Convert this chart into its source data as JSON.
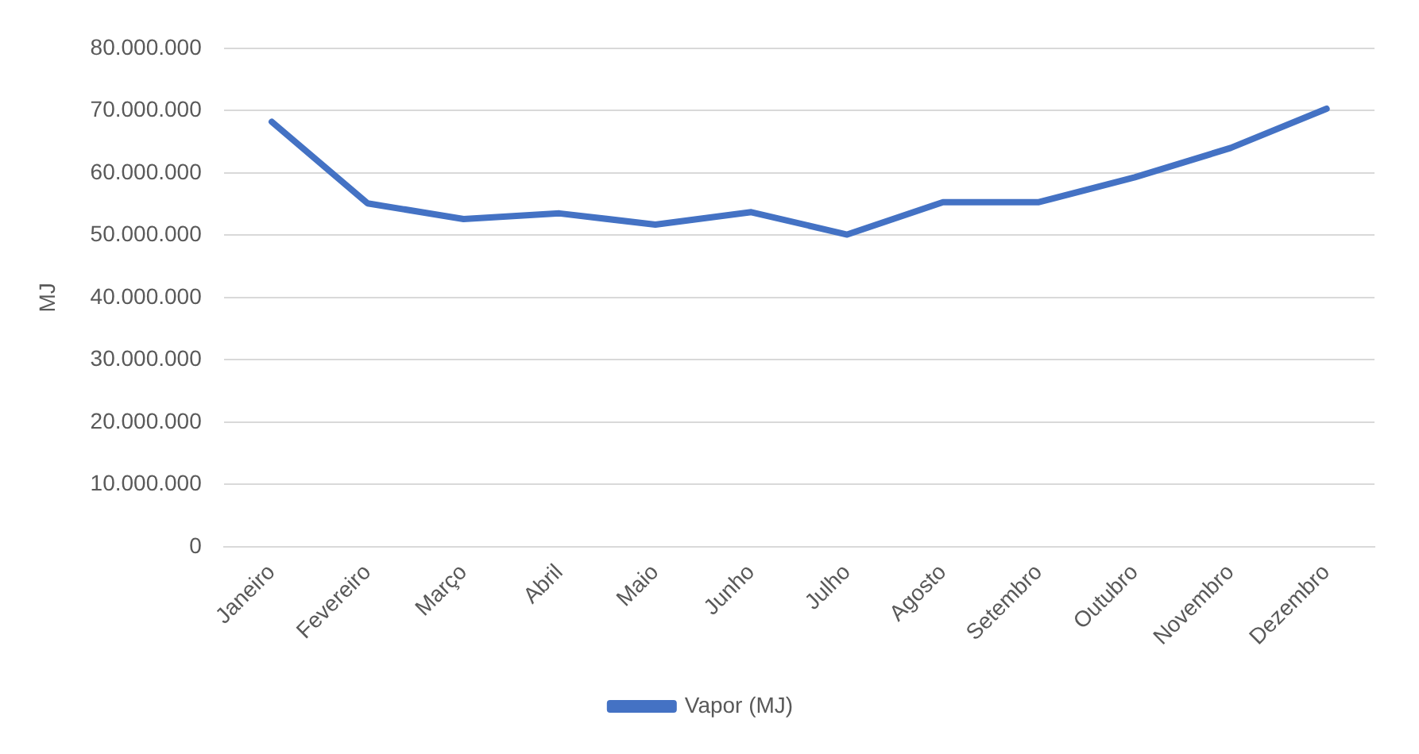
{
  "chart_data": {
    "type": "line",
    "ylabel": "MJ",
    "categories": [
      "Janeiro",
      "Fevereiro",
      "Março",
      "Abril",
      "Maio",
      "Junho",
      "Julho",
      "Agosto",
      "Setembro",
      "Outubro",
      "Novembro",
      "Dezembro"
    ],
    "series": [
      {
        "name": "Vapor (MJ)",
        "color": "#4472c4",
        "values": [
          68200000,
          55100000,
          52600000,
          53500000,
          51700000,
          53700000,
          50100000,
          55300000,
          55300000,
          59300000,
          64000000,
          70300000
        ]
      }
    ],
    "ylim": [
      0,
      80000000
    ],
    "yticks": [
      {
        "value": 0,
        "label": "0"
      },
      {
        "value": 10000000,
        "label": "10.000.000"
      },
      {
        "value": 20000000,
        "label": "20.000.000"
      },
      {
        "value": 30000000,
        "label": "30.000.000"
      },
      {
        "value": 40000000,
        "label": "40.000.000"
      },
      {
        "value": 50000000,
        "label": "50.000.000"
      },
      {
        "value": 60000000,
        "label": "60.000.000"
      },
      {
        "value": 70000000,
        "label": "70.000.000"
      },
      {
        "value": 80000000,
        "label": "80.000.000"
      }
    ],
    "grid": "y",
    "legend": "bottom",
    "marker": "none",
    "line_style": "solid"
  }
}
